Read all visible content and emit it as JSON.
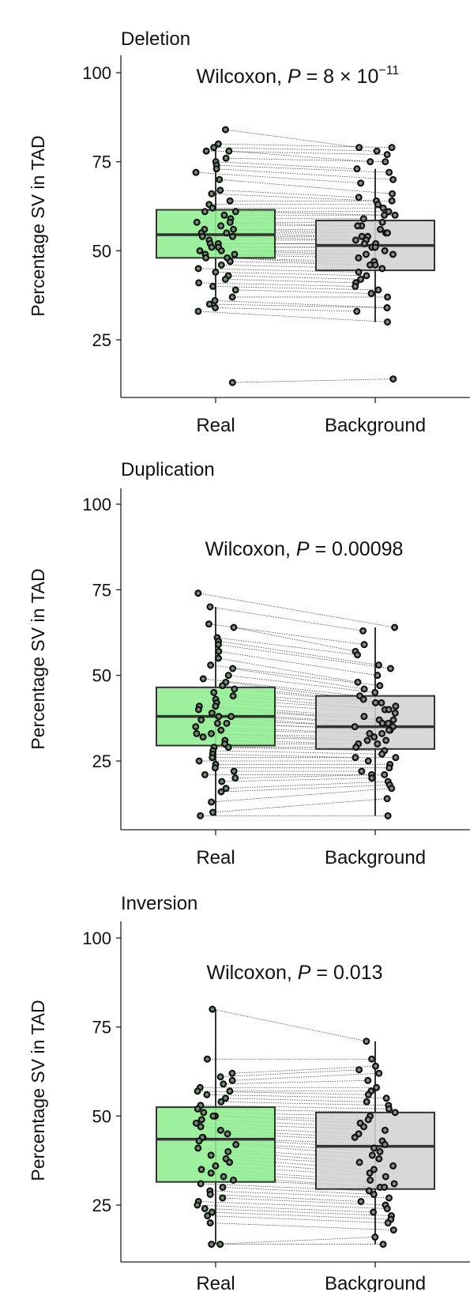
{
  "colors": {
    "real": "#90ee90",
    "background": "#d3d3d3",
    "edge": "#333333",
    "point_edge": "#111111"
  },
  "chart_data": [
    {
      "type": "box",
      "title": "Deletion",
      "ylabel": "Percentage SV in TAD",
      "ylim": [
        0,
        100
      ],
      "yticks": [
        25,
        50,
        75,
        100
      ],
      "categories": [
        "Real",
        "Background"
      ],
      "annotation": {
        "prefix": "Wilcoxon, ",
        "p_symbol": "P",
        "p_value": " = 8 × 10",
        "exponent": "−11"
      },
      "boxes": [
        {
          "category": "Real",
          "q1": 48,
          "median": 54.5,
          "q3": 61.5,
          "whisker_low": 34,
          "whisker_high": 80
        },
        {
          "category": "Background",
          "q1": 44.5,
          "median": 51.5,
          "q3": 58.5,
          "whisker_low": 30,
          "whisker_high": 73
        }
      ],
      "pairs": [
        [
          84,
          79
        ],
        [
          80,
          79
        ],
        [
          79,
          78
        ],
        [
          78,
          77
        ],
        [
          78,
          75
        ],
        [
          76,
          75
        ],
        [
          75,
          73
        ],
        [
          74,
          72
        ],
        [
          73,
          70
        ],
        [
          72,
          69
        ],
        [
          70,
          66
        ],
        [
          67,
          65
        ],
        [
          66,
          64
        ],
        [
          64,
          64
        ],
        [
          63,
          63
        ],
        [
          62,
          62
        ],
        [
          61,
          61
        ],
        [
          61,
          60
        ],
        [
          60,
          60
        ],
        [
          59,
          59
        ],
        [
          58,
          58
        ],
        [
          58,
          57
        ],
        [
          57,
          57
        ],
        [
          56,
          56
        ],
        [
          56,
          55
        ],
        [
          55,
          55
        ],
        [
          55,
          54
        ],
        [
          54,
          54
        ],
        [
          54,
          53
        ],
        [
          53,
          53
        ],
        [
          52,
          52
        ],
        [
          52,
          52
        ],
        [
          51,
          51
        ],
        [
          51,
          51
        ],
        [
          50,
          50
        ],
        [
          50,
          49
        ],
        [
          49,
          49
        ],
        [
          49,
          48
        ],
        [
          48,
          47
        ],
        [
          48,
          46
        ],
        [
          47,
          46
        ],
        [
          46,
          45
        ],
        [
          45,
          44
        ],
        [
          44,
          43
        ],
        [
          43,
          42
        ],
        [
          42,
          41
        ],
        [
          41,
          40
        ],
        [
          40,
          39
        ],
        [
          39,
          38
        ],
        [
          37,
          37
        ],
        [
          36,
          34
        ],
        [
          35,
          34
        ],
        [
          34,
          33
        ],
        [
          33,
          30
        ],
        [
          13,
          14
        ]
      ]
    },
    {
      "type": "box",
      "title": "Duplication",
      "ylabel": "Percentage SV in TAD",
      "ylim": [
        0,
        100
      ],
      "yticks": [
        25,
        50,
        75,
        100
      ],
      "categories": [
        "Real",
        "Background"
      ],
      "annotation": {
        "prefix": "Wilcoxon, ",
        "p_symbol": "P",
        "p_value": " = 0.00098",
        "exponent": ""
      },
      "boxes": [
        {
          "category": "Real",
          "q1": 29.5,
          "median": 38,
          "q3": 46.5,
          "whisker_low": 9,
          "whisker_high": 70
        },
        {
          "category": "Background",
          "q1": 28.5,
          "median": 35,
          "q3": 44,
          "whisker_low": 9,
          "whisker_high": 64
        }
      ],
      "pairs": [
        [
          74,
          64
        ],
        [
          70,
          63
        ],
        [
          65,
          59
        ],
        [
          64,
          57
        ],
        [
          61,
          56
        ],
        [
          60,
          53
        ],
        [
          59,
          52
        ],
        [
          57,
          50
        ],
        [
          55,
          48
        ],
        [
          53,
          47
        ],
        [
          52,
          46
        ],
        [
          50,
          45
        ],
        [
          49,
          44
        ],
        [
          48,
          43
        ],
        [
          47,
          42
        ],
        [
          46,
          42
        ],
        [
          45,
          41
        ],
        [
          44,
          40
        ],
        [
          43,
          40
        ],
        [
          42,
          39
        ],
        [
          41,
          38
        ],
        [
          41,
          37
        ],
        [
          40,
          37
        ],
        [
          39,
          36
        ],
        [
          38,
          36
        ],
        [
          38,
          35
        ],
        [
          37,
          35
        ],
        [
          36,
          34
        ],
        [
          36,
          34
        ],
        [
          35,
          33
        ],
        [
          34,
          33
        ],
        [
          33,
          32
        ],
        [
          33,
          31
        ],
        [
          32,
          31
        ],
        [
          31,
          30
        ],
        [
          30,
          30
        ],
        [
          29,
          29
        ],
        [
          29,
          28
        ],
        [
          28,
          27
        ],
        [
          27,
          26
        ],
        [
          26,
          26
        ],
        [
          25,
          25
        ],
        [
          24,
          24
        ],
        [
          23,
          23
        ],
        [
          22,
          22
        ],
        [
          21,
          21
        ],
        [
          20,
          21
        ],
        [
          19,
          20
        ],
        [
          17,
          19
        ],
        [
          16,
          18
        ],
        [
          13,
          17
        ],
        [
          10,
          14
        ],
        [
          9,
          9
        ]
      ]
    },
    {
      "type": "box",
      "title": "Inversion",
      "ylabel": "Percentage SV in TAD",
      "ylim": [
        0,
        100
      ],
      "yticks": [
        25,
        50,
        75,
        100
      ],
      "categories": [
        "Real",
        "Background"
      ],
      "annotation": {
        "prefix": "Wilcoxon, ",
        "p_symbol": "P",
        "p_value": " = 0.013",
        "exponent": ""
      },
      "boxes": [
        {
          "category": "Real",
          "q1": 31.5,
          "median": 43.5,
          "q3": 52.5,
          "whisker_low": 14,
          "whisker_high": 80
        },
        {
          "category": "Background",
          "q1": 29.5,
          "median": 41.5,
          "q3": 51,
          "whisker_low": 14,
          "whisker_high": 71
        }
      ],
      "pairs": [
        [
          80,
          71
        ],
        [
          66,
          66
        ],
        [
          62,
          64
        ],
        [
          61,
          63
        ],
        [
          60,
          62
        ],
        [
          59,
          60
        ],
        [
          58,
          58
        ],
        [
          57,
          57
        ],
        [
          57,
          56
        ],
        [
          56,
          55
        ],
        [
          55,
          54
        ],
        [
          54,
          53
        ],
        [
          53,
          52
        ],
        [
          52,
          51
        ],
        [
          51,
          50
        ],
        [
          50,
          49
        ],
        [
          50,
          48
        ],
        [
          49,
          47
        ],
        [
          48,
          46
        ],
        [
          47,
          45
        ],
        [
          46,
          44
        ],
        [
          45,
          43
        ],
        [
          44,
          42
        ],
        [
          44,
          41
        ],
        [
          43,
          40
        ],
        [
          42,
          39
        ],
        [
          41,
          38
        ],
        [
          40,
          37
        ],
        [
          39,
          36
        ],
        [
          38,
          35
        ],
        [
          37,
          34
        ],
        [
          36,
          33
        ],
        [
          35,
          32
        ],
        [
          34,
          31
        ],
        [
          33,
          30
        ],
        [
          32,
          30
        ],
        [
          31,
          29
        ],
        [
          30,
          28
        ],
        [
          29,
          27
        ],
        [
          28,
          26
        ],
        [
          27,
          25
        ],
        [
          26,
          24
        ],
        [
          25,
          23
        ],
        [
          24,
          22
        ],
        [
          23,
          21
        ],
        [
          22,
          20
        ],
        [
          20,
          18
        ],
        [
          14,
          16
        ],
        [
          14,
          14
        ]
      ]
    }
  ]
}
